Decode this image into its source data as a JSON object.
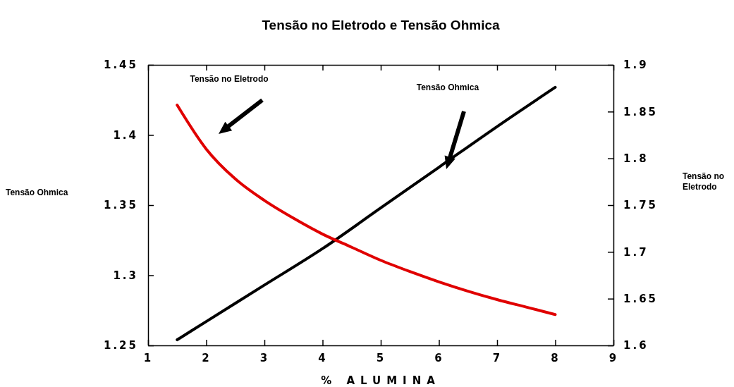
{
  "chart_data": {
    "type": "line",
    "title": "Tensão no Eletrodo e Tensão Ohmica",
    "xlabel": "% ALUMINA",
    "ylabel": "Tensão Ohmica",
    "y2label": "Tensão no\nEletrodo",
    "xlim": [
      1,
      9
    ],
    "xticks": [
      1,
      2,
      3,
      4,
      5,
      6,
      7,
      8,
      9
    ],
    "ylim": [
      1.25,
      1.45
    ],
    "yticks": [
      1.25,
      1.3,
      1.35,
      1.4,
      1.45
    ],
    "y2lim": [
      1.6,
      1.9
    ],
    "y2ticks": [
      1.6,
      1.65,
      1.7,
      1.75,
      1.8,
      1.85,
      1.9
    ],
    "grid": false,
    "marker": "none",
    "line_style": "solid",
    "series": [
      {
        "color": "#000000",
        "x": [
          1.5,
          2,
          3,
          4,
          5,
          6,
          7,
          8
        ],
        "values": [
          1.254,
          1.267,
          1.293,
          1.319,
          1.348,
          1.377,
          1.406,
          1.434
        ]
      },
      {
        "color": "#e00000",
        "axis": "y2",
        "x": [
          1.5,
          2,
          2.5,
          3,
          3.5,
          4,
          4.5,
          5,
          5.5,
          6,
          6.5,
          7,
          7.5,
          8
        ],
        "values": [
          1.857,
          1.81,
          1.778,
          1.755,
          1.736,
          1.719,
          1.705,
          1.691,
          1.679,
          1.668,
          1.658,
          1.649,
          1.641,
          1.633
        ]
      }
    ],
    "annotations": [
      "Tensão no Eletrodo",
      "Tensão Ohmica"
    ]
  }
}
